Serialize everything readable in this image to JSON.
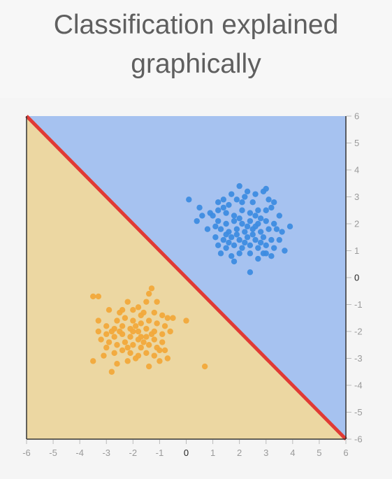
{
  "chart_data": {
    "type": "scatter",
    "title_lines": [
      "Classification explained",
      "graphically"
    ],
    "xlim": [
      -6,
      6
    ],
    "ylim": [
      -6,
      6
    ],
    "x_ticks": [
      -6,
      -5,
      -4,
      -3,
      -2,
      -1,
      0,
      1,
      2,
      3,
      4,
      5,
      6
    ],
    "y_ticks": [
      6,
      5,
      4,
      3,
      2,
      1,
      0,
      -1,
      -2,
      -3,
      -4,
      -5,
      -6
    ],
    "decision_boundary": {
      "x": [
        -6,
        6
      ],
      "y": [
        6,
        -6
      ],
      "color": "#e03a35"
    },
    "regions": [
      {
        "label": "",
        "side": "above",
        "color": "#a6c2f0"
      },
      {
        "label": "",
        "side": "below",
        "color": "#ecd7a2"
      }
    ],
    "series": [
      {
        "color": "#3d8ce0",
        "points": [
          [
            1.6,
            2.7
          ],
          [
            1.9,
            2.9
          ],
          [
            2.2,
            3.0
          ],
          [
            2.5,
            2.8
          ],
          [
            2.9,
            3.2
          ],
          [
            3.1,
            2.9
          ],
          [
            3.3,
            2.8
          ],
          [
            3.0,
            3.3
          ],
          [
            2.0,
            3.4
          ],
          [
            1.4,
            2.9
          ],
          [
            1.2,
            2.5
          ],
          [
            1.5,
            2.4
          ],
          [
            1.8,
            2.3
          ],
          [
            2.1,
            2.5
          ],
          [
            2.4,
            2.4
          ],
          [
            2.7,
            2.5
          ],
          [
            3.0,
            2.5
          ],
          [
            3.2,
            2.6
          ],
          [
            1.0,
            2.3
          ],
          [
            0.6,
            2.3
          ],
          [
            0.4,
            2.1
          ],
          [
            0.1,
            2.9
          ],
          [
            0.5,
            2.6
          ],
          [
            0.9,
            2.4
          ],
          [
            1.2,
            2.1
          ],
          [
            1.5,
            2.0
          ],
          [
            1.8,
            2.1
          ],
          [
            2.1,
            2.0
          ],
          [
            2.4,
            2.1
          ],
          [
            2.7,
            2.0
          ],
          [
            3.0,
            2.1
          ],
          [
            3.3,
            2.0
          ],
          [
            2.6,
            2.3
          ],
          [
            1.3,
            1.8
          ],
          [
            1.6,
            1.7
          ],
          [
            1.9,
            1.8
          ],
          [
            2.2,
            1.7
          ],
          [
            2.5,
            1.8
          ],
          [
            2.8,
            1.7
          ],
          [
            3.1,
            1.8
          ],
          [
            3.4,
            1.8
          ],
          [
            3.6,
            1.7
          ],
          [
            3.9,
            1.9
          ],
          [
            1.1,
            1.5
          ],
          [
            1.4,
            1.4
          ],
          [
            1.7,
            1.5
          ],
          [
            2.0,
            1.4
          ],
          [
            2.3,
            1.5
          ],
          [
            2.6,
            1.4
          ],
          [
            2.9,
            1.5
          ],
          [
            3.2,
            1.4
          ],
          [
            1.2,
            1.2
          ],
          [
            1.5,
            1.1
          ],
          [
            1.8,
            1.2
          ],
          [
            2.1,
            1.1
          ],
          [
            2.4,
            1.2
          ],
          [
            2.7,
            1.1
          ],
          [
            3.0,
            1.2
          ],
          [
            3.3,
            1.1
          ],
          [
            1.3,
            0.9
          ],
          [
            1.7,
            0.8
          ],
          [
            2.4,
            0.9
          ],
          [
            3.0,
            0.9
          ],
          [
            1.8,
            0.6
          ],
          [
            2.7,
            0.7
          ],
          [
            1.1,
            1.9
          ],
          [
            2.0,
            2.2
          ],
          [
            2.3,
            1.9
          ],
          [
            1.9,
            1.6
          ],
          [
            2.2,
            1.3
          ],
          [
            2.5,
            1.6
          ],
          [
            2.8,
            1.3
          ],
          [
            1.6,
            1.3
          ],
          [
            0.8,
            1.8
          ],
          [
            3.5,
            1.4
          ],
          [
            3.7,
            1.0
          ],
          [
            3.2,
            0.8
          ],
          [
            2.0,
            0.9
          ],
          [
            1.4,
            2.6
          ],
          [
            2.6,
            3.1
          ],
          [
            1.7,
            3.1
          ],
          [
            2.3,
            3.2
          ],
          [
            2.8,
            2.2
          ],
          [
            1.2,
            2.8
          ],
          [
            2.4,
            0.2
          ],
          [
            3.5,
            2.3
          ],
          [
            2.9,
            0.9
          ],
          [
            1.5,
            1.6
          ],
          [
            2.1,
            2.8
          ],
          [
            2.6,
            1.9
          ]
        ]
      },
      {
        "color": "#f2a93b",
        "points": [
          [
            -2.0,
            -1.2
          ],
          [
            -1.8,
            -1.1
          ],
          [
            -1.5,
            -0.9
          ],
          [
            -1.4,
            -0.6
          ],
          [
            -1.3,
            -0.4
          ],
          [
            -2.5,
            -1.3
          ],
          [
            -2.9,
            -1.2
          ],
          [
            -3.3,
            -0.7
          ],
          [
            -2.2,
            -0.9
          ],
          [
            -1.7,
            -1.4
          ],
          [
            -1.2,
            -1.3
          ],
          [
            -0.9,
            -1.4
          ],
          [
            -0.7,
            -1.5
          ],
          [
            -2.6,
            -1.6
          ],
          [
            -2.3,
            -1.5
          ],
          [
            -2.0,
            -1.6
          ],
          [
            -1.7,
            -1.7
          ],
          [
            -1.4,
            -1.6
          ],
          [
            -1.1,
            -1.7
          ],
          [
            -0.8,
            -1.8
          ],
          [
            -3.0,
            -1.8
          ],
          [
            -2.7,
            -1.9
          ],
          [
            -2.4,
            -1.8
          ],
          [
            -2.1,
            -1.9
          ],
          [
            -1.8,
            -2.0
          ],
          [
            -1.5,
            -1.9
          ],
          [
            -1.2,
            -2.0
          ],
          [
            -0.9,
            -2.1
          ],
          [
            -3.3,
            -2.0
          ],
          [
            -3.0,
            -2.1
          ],
          [
            -2.7,
            -2.2
          ],
          [
            -2.4,
            -2.1
          ],
          [
            -2.1,
            -2.2
          ],
          [
            -1.8,
            -2.3
          ],
          [
            -1.5,
            -2.2
          ],
          [
            -1.2,
            -2.3
          ],
          [
            -0.9,
            -2.4
          ],
          [
            -3.2,
            -2.3
          ],
          [
            -2.9,
            -2.4
          ],
          [
            -2.6,
            -2.5
          ],
          [
            -2.3,
            -2.4
          ],
          [
            -2.0,
            -2.5
          ],
          [
            -1.7,
            -2.6
          ],
          [
            -1.4,
            -2.5
          ],
          [
            -1.1,
            -2.6
          ],
          [
            -0.8,
            -2.7
          ],
          [
            -3.0,
            -2.6
          ],
          [
            -2.7,
            -2.8
          ],
          [
            -2.4,
            -2.7
          ],
          [
            -2.1,
            -2.8
          ],
          [
            -1.8,
            -2.9
          ],
          [
            -1.5,
            -2.8
          ],
          [
            -1.2,
            -2.9
          ],
          [
            -3.1,
            -2.9
          ],
          [
            -2.2,
            -3.1
          ],
          [
            -1.9,
            -3.0
          ],
          [
            -1.0,
            -3.1
          ],
          [
            -0.7,
            -3.0
          ],
          [
            -2.6,
            -3.2
          ],
          [
            -3.5,
            -3.1
          ],
          [
            -2.8,
            -3.5
          ],
          [
            -0.5,
            -1.5
          ],
          [
            -1.6,
            -2.4
          ],
          [
            -2.5,
            -2.0
          ],
          [
            -1.9,
            -1.8
          ],
          [
            -1.3,
            -2.1
          ],
          [
            -2.2,
            -2.6
          ],
          [
            -1.6,
            -1.3
          ],
          [
            -2.0,
            -2.0
          ],
          [
            -3.5,
            -0.7
          ],
          [
            0.7,
            -3.3
          ],
          [
            0.0,
            -1.6
          ],
          [
            -1.0,
            -2.7
          ],
          [
            -2.4,
            -1.2
          ],
          [
            -1.1,
            -0.9
          ],
          [
            -2.8,
            -2.0
          ],
          [
            -1.7,
            -2.2
          ],
          [
            -0.6,
            -2.0
          ],
          [
            -3.3,
            -1.6
          ],
          [
            -1.4,
            -3.3
          ]
        ]
      }
    ]
  }
}
